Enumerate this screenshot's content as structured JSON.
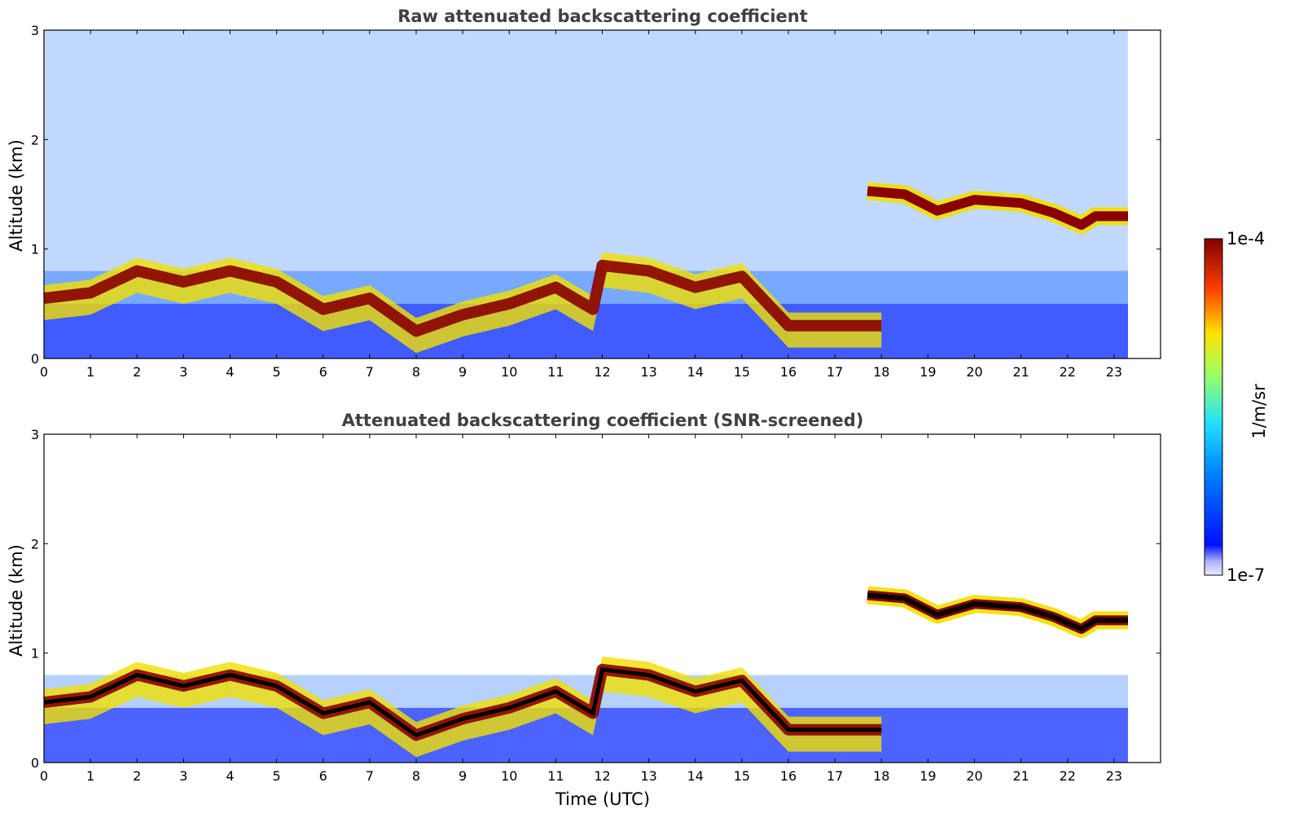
{
  "chart_data": [
    {
      "type": "heatmap",
      "title": "Raw attenuated backscattering coefficient",
      "xlabel": "",
      "ylabel": "Altitude (km)",
      "xlim": [
        0,
        24
      ],
      "ylim": [
        0,
        3
      ],
      "xticks": [
        "0",
        "1",
        "2",
        "3",
        "4",
        "5",
        "6",
        "7",
        "8",
        "9",
        "10",
        "11",
        "12",
        "13",
        "14",
        "15",
        "16",
        "17",
        "18",
        "19",
        "20",
        "21",
        "22",
        "23"
      ],
      "yticks": [
        "0",
        "1",
        "2",
        "3"
      ],
      "data_end_hour": 23.3,
      "screened": false
    },
    {
      "type": "heatmap",
      "title": "Attenuated backscattering coefficient (SNR-screened)",
      "xlabel": "Time (UTC)",
      "ylabel": "Altitude (km)",
      "xlim": [
        0,
        24
      ],
      "ylim": [
        0,
        3
      ],
      "xticks": [
        "0",
        "1",
        "2",
        "3",
        "4",
        "5",
        "6",
        "7",
        "8",
        "9",
        "10",
        "11",
        "12",
        "13",
        "14",
        "15",
        "16",
        "17",
        "18",
        "19",
        "20",
        "21",
        "22",
        "23"
      ],
      "yticks": [
        "0",
        "1",
        "2",
        "3"
      ],
      "data_end_hour": 23.3,
      "screened": true
    }
  ],
  "features": {
    "boundary_layer_top_km": [
      {
        "t": 0,
        "h": 0.55
      },
      {
        "t": 1,
        "h": 0.6
      },
      {
        "t": 2,
        "h": 0.8
      },
      {
        "t": 3,
        "h": 0.7
      },
      {
        "t": 4,
        "h": 0.8
      },
      {
        "t": 5,
        "h": 0.7
      },
      {
        "t": 6,
        "h": 0.45
      },
      {
        "t": 7,
        "h": 0.55
      },
      {
        "t": 8,
        "h": 0.25
      },
      {
        "t": 9,
        "h": 0.4
      },
      {
        "t": 10,
        "h": 0.5
      },
      {
        "t": 11,
        "h": 0.65
      },
      {
        "t": 11.8,
        "h": 0.45
      },
      {
        "t": 12,
        "h": 0.85
      },
      {
        "t": 13,
        "h": 0.8
      },
      {
        "t": 14,
        "h": 0.65
      },
      {
        "t": 15,
        "h": 0.75
      },
      {
        "t": 16,
        "h": 0.3
      },
      {
        "t": 17,
        "h": 0.3
      },
      {
        "t": 18,
        "h": 0.3
      }
    ],
    "cloud_layer_km": [
      {
        "t": 17.7,
        "h": 1.53
      },
      {
        "t": 18.5,
        "h": 1.5
      },
      {
        "t": 19.2,
        "h": 1.35
      },
      {
        "t": 20,
        "h": 1.45
      },
      {
        "t": 21,
        "h": 1.42
      },
      {
        "t": 21.7,
        "h": 1.33
      },
      {
        "t": 22.3,
        "h": 1.22
      },
      {
        "t": 22.6,
        "h": 1.3
      },
      {
        "t": 23.3,
        "h": 1.3
      }
    ]
  },
  "colorbar": {
    "label": "1/m/sr",
    "max_label": "1e-4",
    "min_label": "1e-7",
    "colormap": "jet"
  },
  "colors": {
    "low": "#1f3cff",
    "mid": "#21e3e6",
    "high": "#f0e000",
    "peak": "#8a0000",
    "screened_core": "#000000"
  }
}
